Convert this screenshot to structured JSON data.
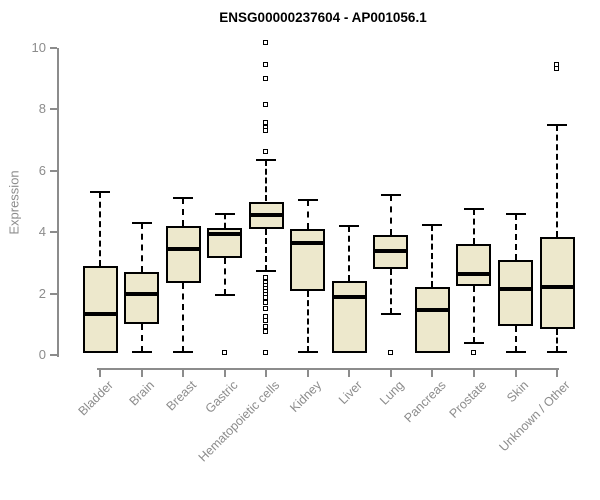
{
  "chart_data": {
    "type": "boxplot",
    "title": "ENSG00000237604 - AP001056.1",
    "ylabel": "Expression",
    "xlabel": "",
    "ylim": [
      0,
      10
    ],
    "yticks": [
      0,
      2,
      4,
      6,
      8,
      10
    ],
    "grid": false,
    "legend": "none",
    "categories": [
      "Bladder",
      "Brain",
      "Breast",
      "Gastric",
      "Hematopoietic cells",
      "Kidney",
      "Liver",
      "Lung",
      "Pancreas",
      "Prostate",
      "Skin",
      "Unknown / Other"
    ],
    "boxes": [
      {
        "category": "Bladder",
        "whisker_high": 5.3,
        "q3": 2.9,
        "median": 1.35,
        "q1": 0.05,
        "whisker_low": 0.05,
        "outliers": []
      },
      {
        "category": "Brain",
        "whisker_high": 4.3,
        "q3": 2.7,
        "median": 2.0,
        "q1": 1.0,
        "whisker_low": 0.1,
        "outliers": []
      },
      {
        "category": "Breast",
        "whisker_high": 5.1,
        "q3": 4.2,
        "median": 3.45,
        "q1": 2.35,
        "whisker_low": 0.1,
        "outliers": []
      },
      {
        "category": "Gastric",
        "whisker_high": 4.6,
        "q3": 4.15,
        "median": 3.95,
        "q1": 3.15,
        "whisker_low": 1.95,
        "outliers": [
          0.05
        ]
      },
      {
        "category": "Hematopoietic cells",
        "whisker_high": 6.35,
        "q3": 5.0,
        "median": 4.55,
        "q1": 4.1,
        "whisker_low": 2.75,
        "outliers": [
          10.15,
          9.45,
          9.0,
          8.15,
          7.55,
          7.4,
          7.3,
          6.6,
          2.5,
          2.35,
          2.25,
          2.15,
          2.05,
          1.95,
          1.85,
          1.7,
          1.5,
          1.25,
          1.1,
          0.9,
          0.75,
          0.05
        ]
      },
      {
        "category": "Kidney",
        "whisker_high": 5.05,
        "q3": 4.1,
        "median": 3.65,
        "q1": 2.1,
        "whisker_low": 0.1,
        "outliers": []
      },
      {
        "category": "Liver",
        "whisker_high": 4.2,
        "q3": 2.4,
        "median": 1.9,
        "q1": 0.05,
        "whisker_low": 0.05,
        "outliers": []
      },
      {
        "category": "Lung",
        "whisker_high": 5.2,
        "q3": 3.9,
        "median": 3.4,
        "q1": 2.8,
        "whisker_low": 1.35,
        "outliers": [
          0.05
        ]
      },
      {
        "category": "Pancreas",
        "whisker_high": 4.25,
        "q3": 2.2,
        "median": 1.45,
        "q1": 0.05,
        "whisker_low": 0.05,
        "outliers": []
      },
      {
        "category": "Prostate",
        "whisker_high": 4.75,
        "q3": 3.6,
        "median": 2.65,
        "q1": 2.25,
        "whisker_low": 0.4,
        "outliers": [
          0.05
        ]
      },
      {
        "category": "Skin",
        "whisker_high": 4.6,
        "q3": 3.1,
        "median": 2.15,
        "q1": 0.95,
        "whisker_low": 0.1,
        "outliers": []
      },
      {
        "category": "Unknown / Other",
        "whisker_high": 7.5,
        "q3": 3.85,
        "median": 2.2,
        "q1": 0.85,
        "whisker_low": 0.1,
        "outliers": [
          9.45,
          9.3
        ]
      }
    ],
    "colors": {
      "box_fill": "#EDE8CC",
      "box_border": "#000000",
      "median": "#000000",
      "whisker": "#000000",
      "axis": "#8C8C8C",
      "tick_label": "#8C8C8C",
      "title": "#000000",
      "background": "#FFFFFF"
    }
  }
}
